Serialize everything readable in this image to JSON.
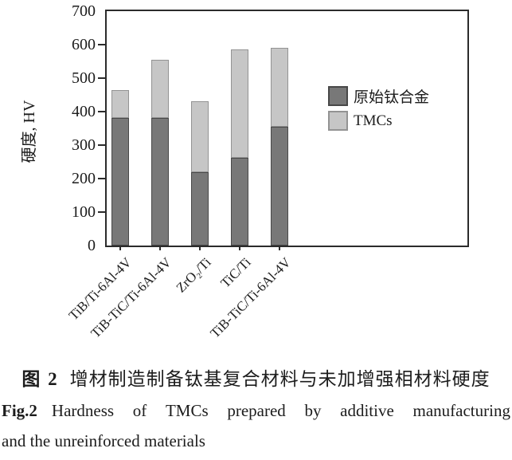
{
  "figure": {
    "caption_zh": {
      "prefix": "图 2",
      "text": "增材制造制备钛基复合材料与未加增强相材料硬度"
    },
    "caption_en": {
      "prefix": "Fig.2",
      "line1": "Hardness of TMCs prepared by additive manufacturing",
      "line2": "and the unreinforced materials"
    }
  },
  "chart_data": {
    "type": "bar",
    "stacked": true,
    "title": "",
    "xlabel": "",
    "ylabel": "硬度, HV",
    "ylim": [
      0,
      700
    ],
    "yticks": [
      0,
      100,
      200,
      300,
      400,
      500,
      600,
      700
    ],
    "grid": false,
    "legend_position": "center-right",
    "categories": [
      "TiB/Ti-6Al-4V",
      "TiB-TiC/Ti-6Al-4V",
      "ZrO₂/Ti",
      "TiC/Ti",
      "TiB-TiC/Ti-6Al-4V"
    ],
    "series": [
      {
        "name": "原始钛合金",
        "values": [
          380,
          380,
          220,
          262,
          355
        ],
        "color": "#787878",
        "border": "#484848"
      },
      {
        "name": "TMCs",
        "values": [
          85,
          175,
          210,
          323,
          235
        ],
        "color": "#c6c6c6",
        "border": "#939393"
      }
    ],
    "stack_totals": [
      465,
      555,
      430,
      585,
      590
    ]
  },
  "colors": {
    "axis": "#2b2b2b",
    "text": "#1c1c1c",
    "background": "#ffffff"
  }
}
